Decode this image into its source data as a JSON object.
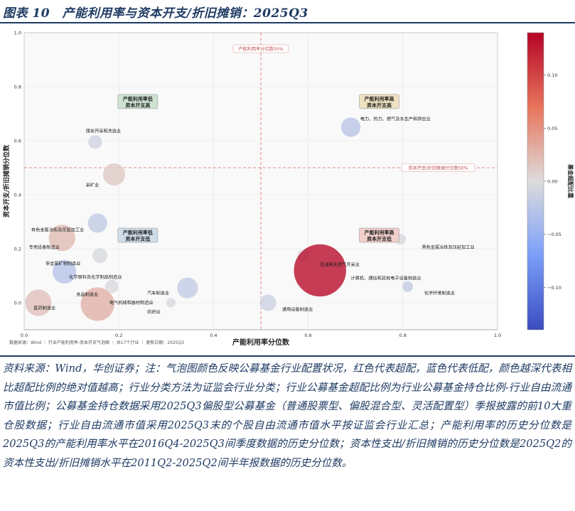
{
  "figure": {
    "title": "图表 10　产能利用率与资本开支/折旧摊销：2025Q3",
    "source_note": "资料来源：Wind，华创证券；注：气泡图颜色反映公募基金行业配置状况，红色代表超配，蓝色代表低配，颜色越深代表相比超配比例的绝对值越高；行业分类方法为证监会行业分类；行业公募基金超配比例为行业公募基金持仓比例-行业自由流通市值比例；公募基金持仓数据采用2025Q3偏股型公募基金（普通股票型、偏股混合型、灵活配置型）季报披露的前10大重仓股数据；行业自由流通市值采用2025Q3末的个股自由流通市值水平按证监会行业汇总；产能利用率的历史分位数是2025Q3的产能利用率水平在2016Q4-2025Q3间季度数据的历史分位数；资本性支出/折旧摊销的历史分位数是2025Q2的资本性支出/折旧摊销水平在2011Q2-2025Q2间半年报数据的历史分位数。"
  },
  "chart_data": {
    "type": "scatter",
    "xlabel": "产能利用率分位数",
    "ylabel": "资本开支/折旧摊销分位数",
    "xlim": [
      0,
      1.0
    ],
    "ylim": [
      -0.1,
      1.0
    ],
    "x_ticks": [
      "0.0",
      "0.2",
      "0.4",
      "0.6",
      "0.8",
      "1.0"
    ],
    "y_ticks": [
      "0.0",
      "0.2",
      "0.4",
      "0.6",
      "0.8",
      "1.0"
    ],
    "grid": true,
    "reference_lines": [
      {
        "axis": "x",
        "value": 0.5,
        "label": "产能利用率分位数50%"
      },
      {
        "axis": "y",
        "value": 0.5,
        "label": "资本开支/折旧摊销分位数50%"
      }
    ],
    "quadrants": [
      {
        "label_line1": "产能利用率低",
        "label_line2": "资本开支高",
        "x": 0.24,
        "y": 0.745,
        "color": "#cfe3d3"
      },
      {
        "label_line1": "产能利用率高",
        "label_line2": "资本开支高",
        "x": 0.75,
        "y": 0.745,
        "color": "#efe2c1"
      },
      {
        "label_line1": "产能利用率低",
        "label_line2": "资本开支低",
        "x": 0.24,
        "y": 0.25,
        "color": "#cfdde9"
      },
      {
        "label_line1": "产能利用率高",
        "label_line2": "资本开支低",
        "x": 0.75,
        "y": 0.25,
        "color": "#f1cfcb"
      }
    ],
    "colorbar": {
      "label": "基金超配比重",
      "range": [
        -0.14,
        0.14
      ],
      "ticks": [
        "0.10",
        "0.05",
        "0.00",
        "−0.05",
        "−0.10"
      ],
      "tick_values": [
        0.1,
        0.05,
        0.0,
        -0.05,
        -0.1
      ]
    },
    "points": [
      {
        "name": "电力、热力、燃气及水生产和供应业",
        "x": 0.69,
        "y": 0.65,
        "size": 14,
        "color_value": -0.025
      },
      {
        "name": "煤炭开采和洗选业",
        "x": 0.15,
        "y": 0.595,
        "size": 10,
        "color_value": -0.01
      },
      {
        "name": "采矿业",
        "x": 0.19,
        "y": 0.475,
        "size": 16,
        "color_value": 0.012
      },
      {
        "name": "有色金属冶炼及压延加工业",
        "x": 0.08,
        "y": 0.24,
        "size": 19,
        "color_value": 0.022
      },
      {
        "name": "专用设备制造业",
        "x": 0.155,
        "y": 0.295,
        "size": 14,
        "color_value": -0.02
      },
      {
        "name": "非金属矿物制品业",
        "x": 0.16,
        "y": 0.175,
        "size": 11,
        "color_value": -0.004
      },
      {
        "name": "化学原料及化学制品制造业",
        "x": 0.085,
        "y": 0.115,
        "size": 17,
        "color_value": -0.028
      },
      {
        "name": "食品制造业",
        "x": 0.185,
        "y": 0.06,
        "size": 10,
        "color_value": -0.004
      },
      {
        "name": "医药制造业",
        "x": 0.03,
        "y": 0.0,
        "size": 19,
        "color_value": 0.018
      },
      {
        "name": "电气机械和器材制造业",
        "x": 0.155,
        "y": -0.005,
        "size": 24,
        "color_value": 0.028
      },
      {
        "name": "汽车制造业",
        "x": 0.345,
        "y": 0.055,
        "size": 15,
        "color_value": -0.018
      },
      {
        "name": "纺织业",
        "x": 0.31,
        "y": 0.0,
        "size": 7,
        "color_value": -0.004
      },
      {
        "name": "通用设备制造业",
        "x": 0.515,
        "y": 0.0,
        "size": 12,
        "color_value": -0.012
      },
      {
        "name": "石油和天然气开采业",
        "x": 0.59,
        "y": 0.175,
        "size": 9,
        "color_value": -0.004
      },
      {
        "name": "计算机、通信和其他电子设备制造业",
        "x": 0.625,
        "y": 0.12,
        "size": 37,
        "color_value": 0.135
      },
      {
        "name": "黑色金属冶炼及压延加工业",
        "x": 0.795,
        "y": 0.235,
        "size": 8,
        "color_value": -0.004
      },
      {
        "name": "化学纤维制造业",
        "x": 0.81,
        "y": 0.06,
        "size": 8,
        "color_value": -0.018
      }
    ],
    "point_labels": [
      {
        "name": "电力、热力、燃气及水生产和供应业",
        "x": 0.71,
        "y": 0.675
      },
      {
        "name": "煤炭开采和洗选业",
        "x": 0.13,
        "y": 0.63
      },
      {
        "name": "采矿业",
        "x": 0.13,
        "y": 0.43
      },
      {
        "name": "有色金属冶炼及压延加工业",
        "x": 0.015,
        "y": 0.265
      },
      {
        "name": "专用设备制造业",
        "x": 0.01,
        "y": 0.2
      },
      {
        "name": "非金属矿物制品业",
        "x": 0.045,
        "y": 0.14
      },
      {
        "name": "化学原料及化学制品制造业",
        "x": 0.095,
        "y": 0.09
      },
      {
        "name": "食品制造业",
        "x": 0.11,
        "y": 0.025
      },
      {
        "name": "医药制造业",
        "x": 0.02,
        "y": -0.025
      },
      {
        "name": "电气机械和器材制造业",
        "x": 0.18,
        "y": -0.005
      },
      {
        "name": "汽车制造业",
        "x": 0.26,
        "y": 0.03
      },
      {
        "name": "纺织业",
        "x": 0.26,
        "y": -0.04
      },
      {
        "name": "通用设备制造业",
        "x": 0.545,
        "y": -0.03
      },
      {
        "name": "石油和天然气开采业",
        "x": 0.625,
        "y": 0.135
      },
      {
        "name": "计算机、通信和其他电子设备制造业",
        "x": 0.69,
        "y": 0.085
      },
      {
        "name": "黑色金属冶炼及压延加工业",
        "x": 0.84,
        "y": 0.2
      },
      {
        "name": "化学纤维制造业",
        "x": 0.845,
        "y": 0.03
      }
    ],
    "footer_text": "数据来源：Wind ｜ 行业产能利用率-资本开支气泡图 ｜ 共17个行业 ｜ 更新日期：2025Q3"
  }
}
